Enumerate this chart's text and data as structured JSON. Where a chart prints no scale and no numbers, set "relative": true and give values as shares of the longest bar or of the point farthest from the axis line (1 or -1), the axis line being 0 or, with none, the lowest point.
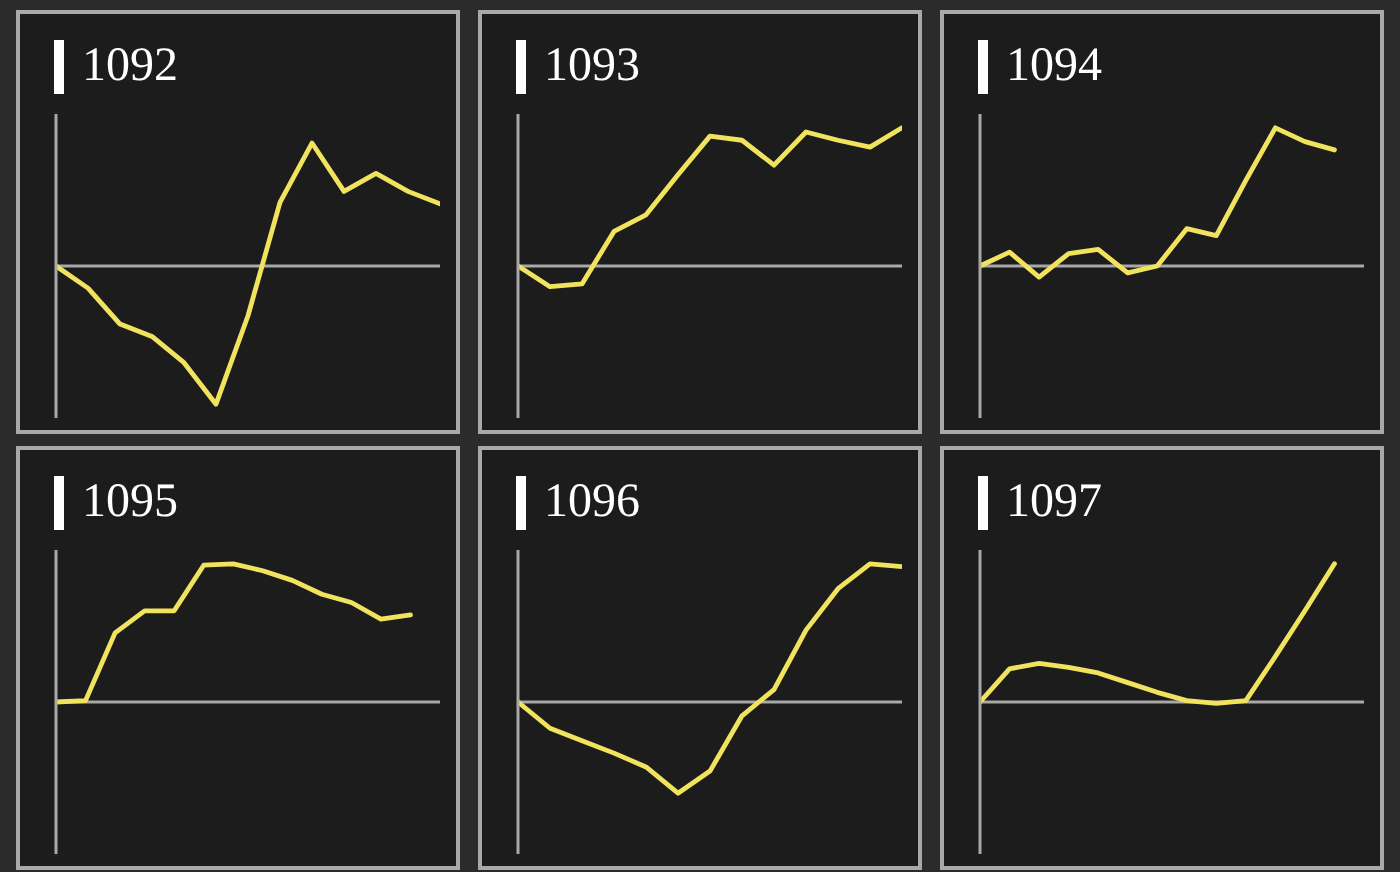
{
  "chart_data": [
    {
      "type": "line",
      "title": "1092",
      "relative": true,
      "categories": [
        null,
        null,
        null,
        null,
        null,
        null,
        null,
        null,
        null,
        null,
        null,
        null,
        null
      ],
      "series": [
        {
          "color": "#f2e35e",
          "values": [
            0,
            -0.16,
            -0.42,
            -0.51,
            -0.7,
            -1,
            -0.36,
            0.46,
            0.89,
            0.54,
            0.67,
            0.54,
            0.45
          ]
        }
      ]
    },
    {
      "type": "line",
      "title": "1093",
      "relative": true,
      "categories": [
        null,
        null,
        null,
        null,
        null,
        null,
        null,
        null,
        null,
        null,
        null,
        null,
        null
      ],
      "series": [
        {
          "color": "#f2e35e",
          "values": [
            0,
            -0.15,
            -0.13,
            0.25,
            0.37,
            0.66,
            0.94,
            0.91,
            0.73,
            0.97,
            0.91,
            0.86,
            1
          ]
        }
      ]
    },
    {
      "type": "line",
      "title": "1094",
      "relative": true,
      "categories": [
        null,
        null,
        null,
        null,
        null,
        null,
        null,
        null,
        null,
        null,
        null,
        null,
        null,
        null
      ],
      "series": [
        {
          "color": "#f2e35e",
          "values": [
            0,
            0.1,
            -0.08,
            0.09,
            0.12,
            -0.05,
            0,
            0.27,
            0.22,
            0.62,
            1,
            0.9,
            0.84,
            null
          ]
        }
      ]
    },
    {
      "type": "line",
      "title": "1095",
      "relative": true,
      "categories": [
        null,
        null,
        null,
        null,
        null,
        null,
        null,
        null,
        null,
        null,
        null,
        null,
        null,
        null
      ],
      "series": [
        {
          "color": "#f2e35e",
          "values": [
            0,
            0.01,
            0.5,
            0.66,
            0.66,
            0.99,
            1,
            0.95,
            0.88,
            0.78,
            0.72,
            0.6,
            0.63,
            null
          ]
        }
      ]
    },
    {
      "type": "line",
      "title": "1096",
      "relative": true,
      "categories": [
        null,
        null,
        null,
        null,
        null,
        null,
        null,
        null,
        null,
        null,
        null,
        null,
        null
      ],
      "series": [
        {
          "color": "#f2e35e",
          "values": [
            0,
            -0.19,
            -0.28,
            -0.37,
            -0.47,
            -0.66,
            -0.5,
            -0.1,
            0.09,
            0.52,
            0.82,
            1,
            0.98
          ]
        }
      ]
    },
    {
      "type": "line",
      "title": "1097",
      "relative": true,
      "categories": [
        null,
        null,
        null,
        null,
        null,
        null,
        null,
        null,
        null,
        null,
        null,
        null,
        null,
        null
      ],
      "series": [
        {
          "color": "#f2e35e",
          "values": [
            0,
            0.24,
            0.28,
            0.25,
            0.21,
            0.14,
            0.07,
            0.01,
            -0.01,
            0.01,
            0.33,
            0.66,
            1,
            null
          ]
        }
      ]
    }
  ]
}
